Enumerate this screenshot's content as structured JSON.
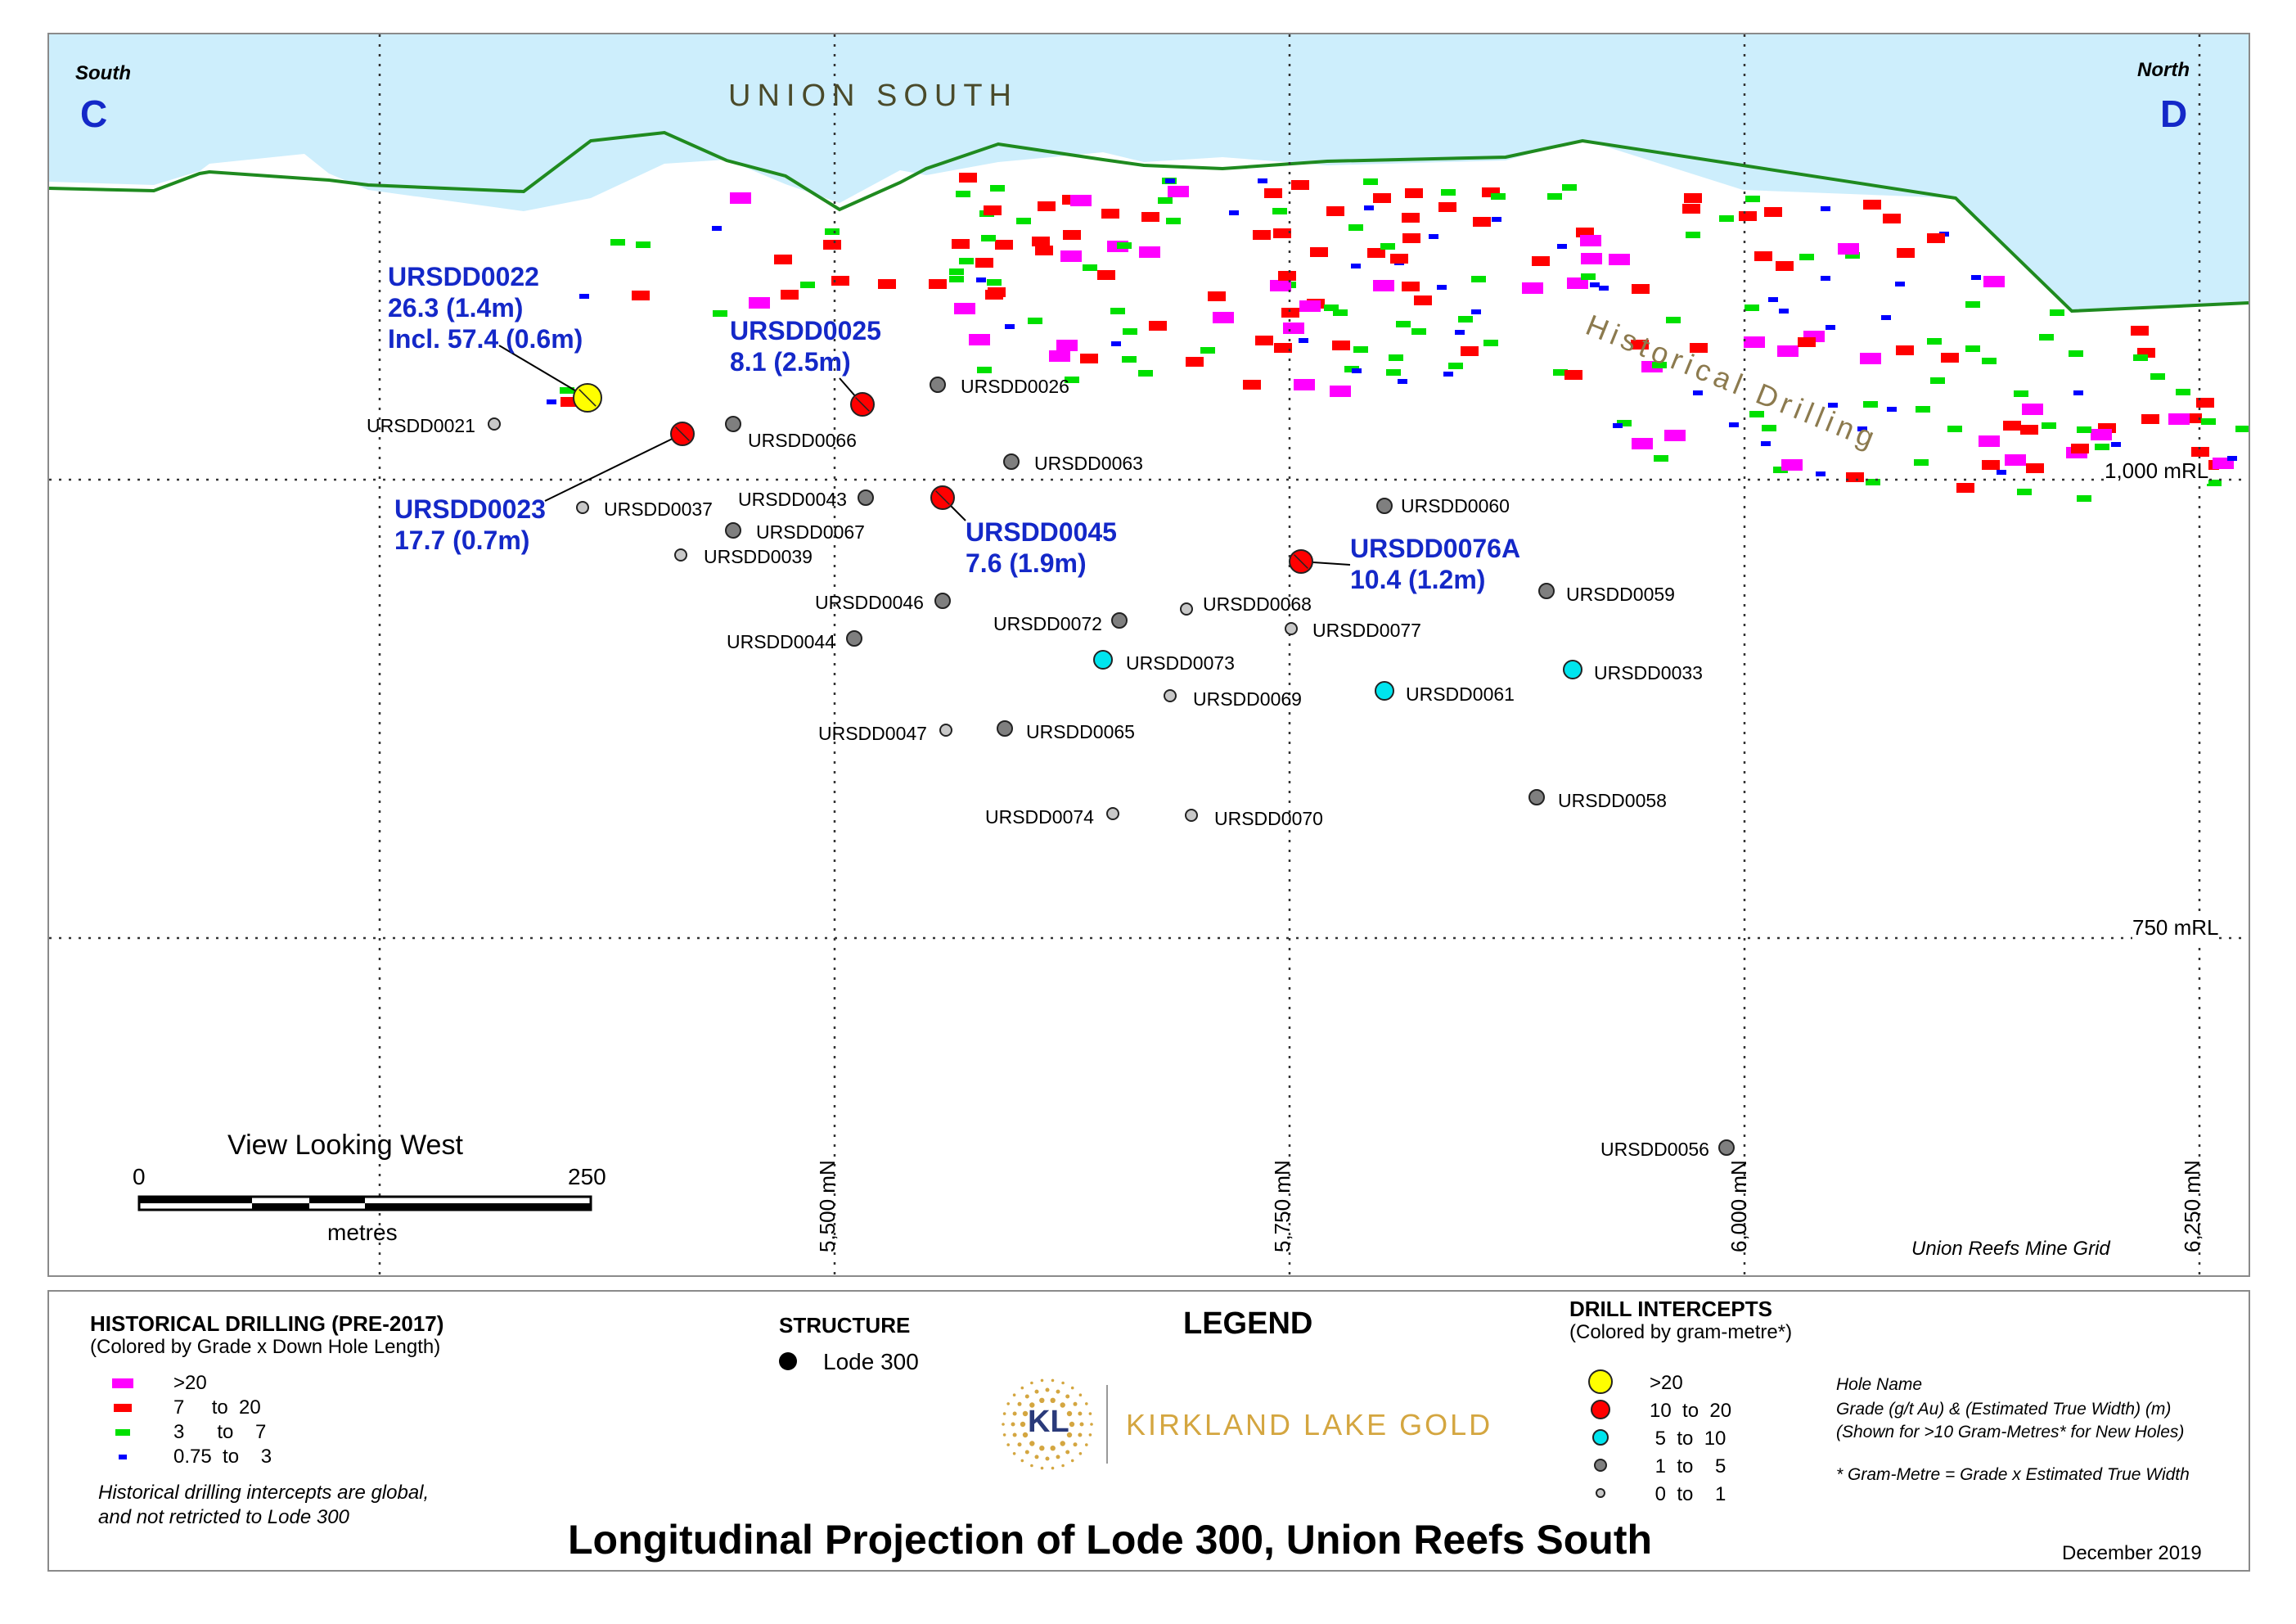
{
  "title": "Longitudinal Projection of Lode 300, Union Reefs South",
  "date": "December 2019",
  "map": {
    "area_label": "UNION SOUTH",
    "south_label": "South",
    "south_letter": "C",
    "north_label": "North",
    "north_letter": "D",
    "historical_drilling_label": "Historical Drilling",
    "grid_label": "Union Reefs Mine Grid",
    "view_label": "View Looking West",
    "scale_start": "0",
    "scale_end": "250",
    "scale_unit": "metres",
    "rl_labels": [
      "1,000 mRL",
      "750 mRL"
    ],
    "northing_labels": [
      "5,500 mN",
      "5,750 mN",
      "6,000 mN",
      "6,250 mN"
    ],
    "drill_holes": [
      {
        "name": "URSDD0021",
        "class": "0-1"
      },
      {
        "name": "URSDD0022",
        "class": ">20"
      },
      {
        "name": "URSDD0023",
        "class": "10-20"
      },
      {
        "name": "URSDD0037",
        "class": "0-1"
      },
      {
        "name": "URSDD0039",
        "class": "0-1"
      },
      {
        "name": "URSDD0066",
        "class": "1-5"
      },
      {
        "name": "URSDD0067",
        "class": "1-5"
      },
      {
        "name": "URSDD0043",
        "class": "1-5"
      },
      {
        "name": "URSDD0025",
        "class": "10-20"
      },
      {
        "name": "URSDD0026",
        "class": "1-5"
      },
      {
        "name": "URSDD0063",
        "class": "1-5"
      },
      {
        "name": "URSDD0045",
        "class": "10-20"
      },
      {
        "name": "URSDD0046",
        "class": "1-5"
      },
      {
        "name": "URSDD0044",
        "class": "1-5"
      },
      {
        "name": "URSDD0072",
        "class": "1-5"
      },
      {
        "name": "URSDD0068",
        "class": "0-1"
      },
      {
        "name": "URSDD0077",
        "class": "0-1"
      },
      {
        "name": "URSDD0073",
        "class": "5-10"
      },
      {
        "name": "URSDD0069",
        "class": "0-1"
      },
      {
        "name": "URSDD0047",
        "class": "0-1"
      },
      {
        "name": "URSDD0065",
        "class": "1-5"
      },
      {
        "name": "URSDD0074",
        "class": "0-1"
      },
      {
        "name": "URSDD0070",
        "class": "0-1"
      },
      {
        "name": "URSDD0060",
        "class": "1-5"
      },
      {
        "name": "URSDD0076A",
        "class": "10-20"
      },
      {
        "name": "URSDD0059",
        "class": "1-5"
      },
      {
        "name": "URSDD0061",
        "class": "5-10"
      },
      {
        "name": "URSDD0033",
        "class": "5-10"
      },
      {
        "name": "URSDD0058",
        "class": "1-5"
      },
      {
        "name": "URSDD0056",
        "class": "1-5"
      }
    ],
    "callouts": [
      {
        "hole": "URSDD0022",
        "lines": [
          "URSDD0022",
          "26.3 (1.4m)",
          "Incl. 57.4 (0.6m)"
        ]
      },
      {
        "hole": "URSDD0025",
        "lines": [
          "URSDD0025",
          "8.1 (2.5m)"
        ]
      },
      {
        "hole": "URSDD0023",
        "lines": [
          "URSDD0023",
          "17.7 (0.7m)"
        ]
      },
      {
        "hole": "URSDD0045",
        "lines": [
          "URSDD0045",
          "7.6 (1.9m)"
        ]
      },
      {
        "hole": "URSDD0076A",
        "lines": [
          "URSDD0076A",
          "10.4 (1.2m)"
        ]
      }
    ]
  },
  "legend": {
    "heading": "LEGEND",
    "historical": {
      "title": "HISTORICAL DRILLING (PRE-2017)",
      "subtitle": "(Colored by Grade x Down Hole Length)",
      "items": [
        {
          "label": ">20",
          "color": "#ff00ff"
        },
        {
          "label": "7     to  20",
          "color": "#ff0000"
        },
        {
          "label": "3      to    7",
          "color": "#00e000"
        },
        {
          "label": "0.75  to    3",
          "color": "#0000ff"
        }
      ],
      "note_line1": "Historical drilling intercepts are global,",
      "note_line2": "and not retricted to Lode 300"
    },
    "structure": {
      "title": "STRUCTURE",
      "items": [
        {
          "label": "Lode 300",
          "color": "#000000"
        }
      ]
    },
    "intercepts": {
      "title": "DRILL INTERCEPTS",
      "subtitle": "(Colored by gram-metre*)",
      "items": [
        {
          "label": ">20",
          "color": "#ffff00"
        },
        {
          "label": "10  to  20",
          "color": "#ff0000"
        },
        {
          "label": " 5  to  10",
          "color": "#00e5ee"
        },
        {
          "label": " 1  to    5",
          "color": "#7f7f7f"
        },
        {
          "label": " 0  to    1",
          "color": "#c8c8c8"
        }
      ]
    },
    "notes": {
      "line1": "Hole Name",
      "line2": "Grade (g/t Au) & (Estimated True Width) (m)",
      "line3": "(Shown for >10 Gram-Metres* for New Holes)",
      "line4": "* Gram-Metre = Grade x Estimated True Width"
    },
    "logo": {
      "initials": "KL",
      "company": "KIRKLAND LAKE GOLD"
    }
  },
  "colors": {
    "sky": "#cdeefc",
    "topography": "#1f8a1f",
    "callout": "#1428c8",
    "area_label": "#4a4a2a",
    "historical_label": "#8c7a4e",
    "logo_gold": "#d4a640"
  }
}
